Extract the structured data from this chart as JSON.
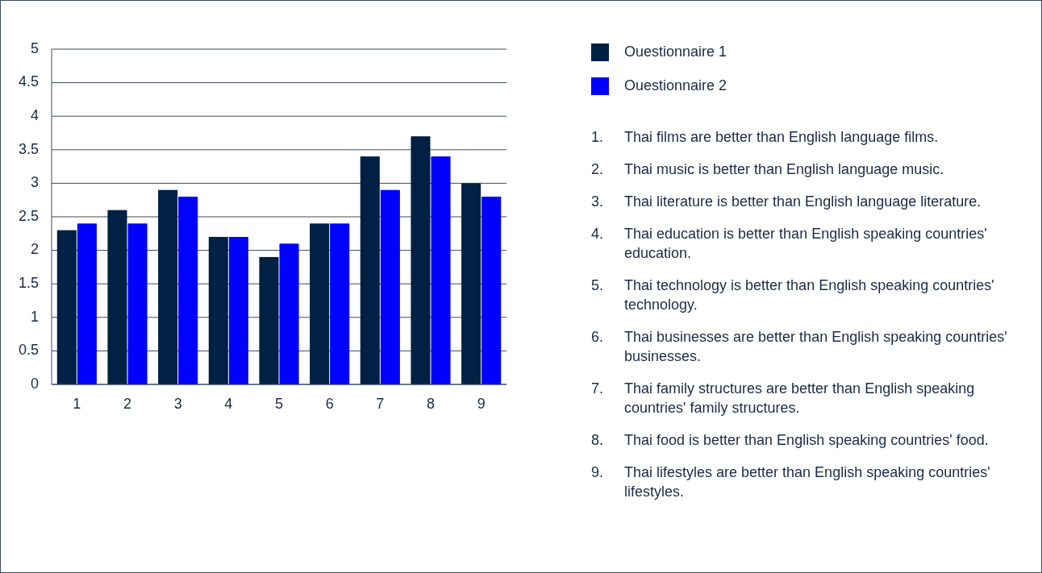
{
  "chart_data": {
    "type": "bar",
    "categories": [
      "1",
      "2",
      "3",
      "4",
      "5",
      "6",
      "7",
      "8",
      "9"
    ],
    "series": [
      {
        "name": "Ouestionnaire 1",
        "color": "#002044",
        "values": [
          2.3,
          2.6,
          2.9,
          2.2,
          1.9,
          2.4,
          3.4,
          3.7,
          3.0
        ]
      },
      {
        "name": "Ouestionnaire 2",
        "color": "#0000ff",
        "values": [
          2.4,
          2.4,
          2.8,
          2.2,
          2.1,
          2.4,
          2.9,
          3.4,
          2.8
        ]
      }
    ],
    "ylim": [
      0,
      5
    ],
    "yticks": [
      0,
      0.5,
      1,
      1.5,
      2,
      2.5,
      3,
      3.5,
      4,
      4.5,
      5
    ],
    "grid": "y",
    "legend": "right",
    "annotations": [
      "1. Thai films are better than English language films.",
      "2. Thai music is better than English language music.",
      "3. Thai literature is better than English language literature.",
      "4. Thai education is better than English speaking countries' education.",
      "5. Thai technology is better than English speaking countries' technology.",
      "6. Thai businesses are better than English speaking countries' businesses.",
      "7. Thai family structures are better than English speaking countries' family structures.",
      "8. Thai food is better than English speaking countries' food.",
      "9. Thai lifestyles are better than English speaking countries' lifestyles."
    ]
  }
}
